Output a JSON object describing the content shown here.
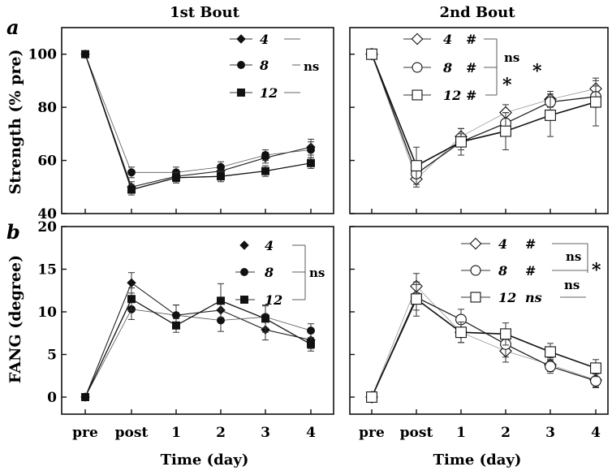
{
  "figure": {
    "panel_a_letter": "a",
    "panel_b_letter": "b",
    "col_titles": [
      "1st Bout",
      "2nd Bout"
    ],
    "x_label": "Time (day)",
    "y_label_top": "Strength (% pre)",
    "y_label_bottom": "FANG (degree)",
    "x_tick_labels": [
      "pre",
      "post",
      "1",
      "2",
      "3",
      "4"
    ]
  },
  "chart_data": [
    {
      "id": "strength_bout1",
      "type": "line",
      "title": "1st Bout",
      "ylabel": "Strength (% pre)",
      "xlabel": "",
      "categories": [
        "pre",
        "post",
        "1",
        "2",
        "3",
        "4"
      ],
      "ylim": [
        40,
        110
      ],
      "yticks": [
        40,
        60,
        80,
        100
      ],
      "series": [
        {
          "name": "4",
          "marker": "diamond-filled",
          "values": [
            100,
            50,
            54,
            56,
            61,
            65
          ],
          "err": [
            0,
            2,
            2,
            2,
            2,
            3
          ]
        },
        {
          "name": "8",
          "marker": "circle-filled",
          "values": [
            100,
            55.5,
            55.5,
            57.5,
            62,
            64
          ],
          "err": [
            0,
            2,
            2,
            2,
            2,
            3
          ]
        },
        {
          "name": "12",
          "marker": "square-filled",
          "values": [
            100,
            49,
            53.5,
            54,
            56,
            59
          ],
          "err": [
            0,
            2,
            2,
            2,
            2,
            2
          ]
        }
      ],
      "legend_note": "ns"
    },
    {
      "id": "strength_bout2",
      "type": "line",
      "title": "2nd Bout",
      "ylabel": "",
      "xlabel": "",
      "categories": [
        "pre",
        "post",
        "1",
        "2",
        "3",
        "4"
      ],
      "ylim": [
        40,
        110
      ],
      "yticks": [
        40,
        60,
        80,
        100
      ],
      "series": [
        {
          "name": "4",
          "legend_symbol": "#",
          "marker": "diamond-open",
          "values": [
            100,
            53,
            69,
            78,
            83,
            87
          ],
          "err": [
            0,
            3,
            3,
            3,
            3,
            3
          ]
        },
        {
          "name": "8",
          "legend_symbol": "#",
          "marker": "circle-open",
          "values": [
            100,
            55,
            67,
            74,
            82,
            84
          ],
          "err": [
            0,
            4,
            3,
            4,
            3,
            4
          ]
        },
        {
          "name": "12",
          "legend_symbol": "#",
          "marker": "square-open",
          "values": [
            100,
            58,
            67,
            71,
            77,
            82
          ],
          "err": [
            0,
            7,
            5,
            7,
            8,
            9
          ]
        }
      ],
      "legend_notes": [
        "ns",
        "*",
        "*"
      ]
    },
    {
      "id": "fang_bout1",
      "type": "line",
      "title": "",
      "ylabel": "FANG (degree)",
      "xlabel": "Time (day)",
      "categories": [
        "pre",
        "post",
        "1",
        "2",
        "3",
        "4"
      ],
      "ylim": [
        -2,
        20
      ],
      "yticks": [
        0,
        5,
        10,
        15,
        20
      ],
      "series": [
        {
          "name": "4",
          "marker": "diamond-filled",
          "values": [
            0,
            13.4,
            9.6,
            10.2,
            7.9,
            6.7
          ],
          "err": [
            0,
            1.2,
            1.2,
            1.2,
            1.2,
            1.0
          ]
        },
        {
          "name": "8",
          "marker": "circle-filled",
          "values": [
            0,
            10.3,
            9.6,
            9.0,
            9.4,
            7.8
          ],
          "err": [
            0,
            1.2,
            1.2,
            1.3,
            1.3,
            0.8
          ]
        },
        {
          "name": "12",
          "marker": "square-filled",
          "values": [
            0,
            11.5,
            8.4,
            11.3,
            9.2,
            6.2
          ],
          "err": [
            0,
            1.3,
            0.8,
            2.0,
            1.6,
            0.8
          ]
        }
      ],
      "legend_note": "ns"
    },
    {
      "id": "fang_bout2",
      "type": "line",
      "title": "",
      "ylabel": "",
      "xlabel": "Time (day)",
      "categories": [
        "pre",
        "post",
        "1",
        "2",
        "3",
        "4"
      ],
      "ylim": [
        -2,
        20
      ],
      "yticks": [
        0,
        5,
        10,
        15,
        20
      ],
      "series": [
        {
          "name": "4",
          "legend_symbol": "#",
          "marker": "diamond-open",
          "values": [
            0,
            13.0,
            7.6,
            5.4,
            3.8,
            2.0
          ],
          "err": [
            0,
            1.5,
            1.2,
            1.3,
            0.8,
            0.8
          ]
        },
        {
          "name": "8",
          "legend_symbol": "#",
          "marker": "circle-open",
          "values": [
            0,
            11.7,
            9.1,
            6.2,
            3.6,
            1.9
          ],
          "err": [
            0,
            1.5,
            1.2,
            1.5,
            0.8,
            0.8
          ]
        },
        {
          "name": "12",
          "legend_symbol": "ns",
          "marker": "square-open",
          "values": [
            0,
            11.5,
            7.6,
            7.4,
            5.3,
            3.4
          ],
          "err": [
            0,
            2.0,
            1.2,
            1.3,
            1.0,
            1.0
          ]
        }
      ],
      "legend_notes": [
        "ns",
        "ns",
        "*"
      ]
    }
  ]
}
